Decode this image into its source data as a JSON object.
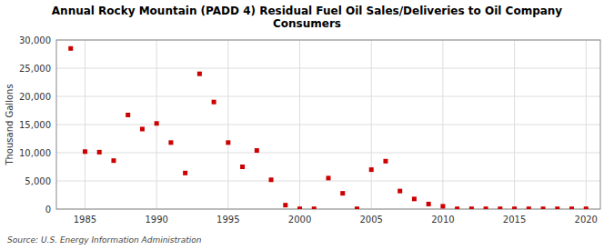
{
  "chart_data": {
    "type": "scatter",
    "title": "Annual Rocky Mountain (PADD 4) Residual Fuel Oil Sales/Deliveries to Oil Company\nConsumers",
    "y_label": "Thousand Gallons",
    "annotations": [
      "Source: U.S. Energy Information Administration"
    ],
    "color": "#cc0000",
    "marker": "square",
    "grid": true,
    "x": [
      1984,
      1985,
      1986,
      1987,
      1988,
      1989,
      1990,
      1991,
      1992,
      1993,
      1994,
      1995,
      1996,
      1997,
      1998,
      1999,
      2000,
      2001,
      2002,
      2003,
      2004,
      2005,
      2006,
      2007,
      2008,
      2009,
      2010,
      2011,
      2012,
      2013,
      2014,
      2015,
      2016,
      2017,
      2018,
      2019,
      2020
    ],
    "values": [
      28500,
      10200,
      10100,
      8600,
      16700,
      14200,
      15200,
      11800,
      6400,
      24000,
      19000,
      11800,
      7500,
      10400,
      5200,
      700,
      50,
      50,
      5500,
      2800,
      50,
      7000,
      8500,
      3200,
      1800,
      900,
      500,
      50,
      50,
      50,
      50,
      50,
      50,
      50,
      50,
      50,
      50
    ],
    "xlim": [
      1983,
      2021
    ],
    "ylim": [
      0,
      30000
    ],
    "xticks": [
      1985,
      1990,
      1995,
      2000,
      2005,
      2010,
      2015,
      2020
    ],
    "yticks": [
      0,
      {
        "value": 5000,
        "label": "5,000"
      },
      {
        "value": 10000,
        "label": "10,000"
      },
      {
        "value": 15000,
        "label": "15,000"
      },
      {
        "value": 20000,
        "label": "20,000"
      },
      {
        "value": 25000,
        "label": "25,000"
      },
      {
        "value": 30000,
        "label": "30,000"
      }
    ]
  }
}
